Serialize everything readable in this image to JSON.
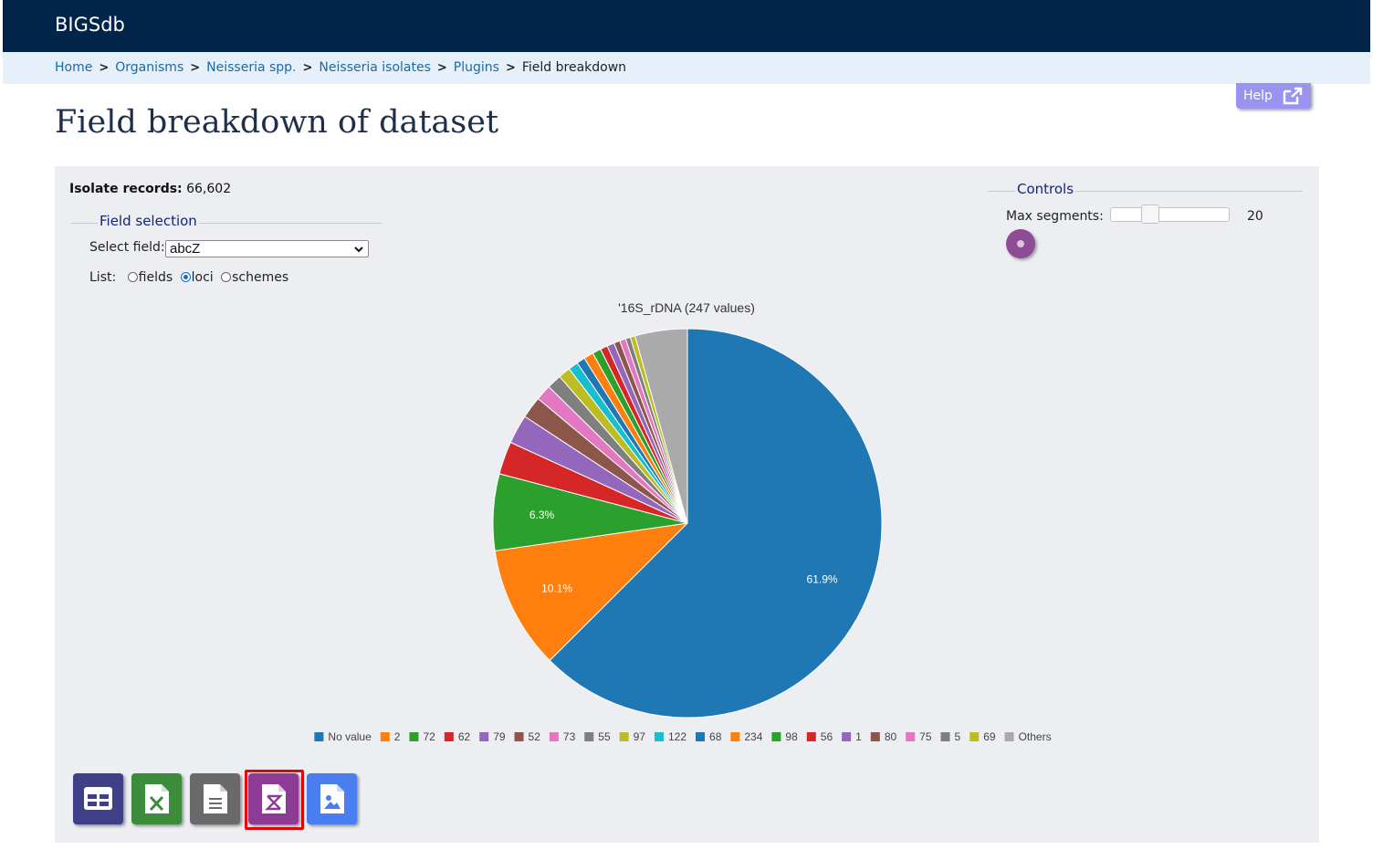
{
  "app": {
    "brand": "BIGSdb"
  },
  "breadcrumb": {
    "items": [
      "Home",
      "Organisms",
      "Neisseria spp.",
      "Neisseria isolates",
      "Plugins"
    ],
    "current": "Field breakdown",
    "separator": ">"
  },
  "help": {
    "label": "Help",
    "icon": "external-link-icon"
  },
  "page": {
    "title": "Field breakdown of dataset"
  },
  "records": {
    "label": "Isolate records:",
    "value": "66,602"
  },
  "field_selection": {
    "legend": "Field selection",
    "select_label": "Select field:",
    "selected": "abcZ",
    "list_label": "List:",
    "options": [
      {
        "label": "fields",
        "checked": false
      },
      {
        "label": "loci",
        "checked": true
      },
      {
        "label": "schemes",
        "checked": false
      }
    ]
  },
  "controls": {
    "legend": "Controls",
    "max_segments_label": "Max segments:",
    "max_segments_value": "20",
    "slider_fraction": 0.27
  },
  "chart_data": {
    "type": "pie",
    "title": "'16S_rDNA (247 values)",
    "legend_position": "bottom",
    "slices": [
      {
        "label": "No value",
        "value": 61.9,
        "color": "#1f77b4",
        "show_label": "61.9%"
      },
      {
        "label": "2",
        "value": 10.1,
        "color": "#ff7f0e",
        "show_label": "10.1%"
      },
      {
        "label": "72",
        "value": 6.3,
        "color": "#2ca02c",
        "show_label": "6.3%"
      },
      {
        "label": "62",
        "value": 2.7,
        "color": "#d62728"
      },
      {
        "label": "79",
        "value": 2.4,
        "color": "#9467bd"
      },
      {
        "label": "52",
        "value": 1.8,
        "color": "#8c564b"
      },
      {
        "label": "73",
        "value": 1.3,
        "color": "#e377c2"
      },
      {
        "label": "55",
        "value": 1.2,
        "color": "#7f7f7f"
      },
      {
        "label": "97",
        "value": 1.0,
        "color": "#bcbd22"
      },
      {
        "label": "122",
        "value": 0.8,
        "color": "#17becf"
      },
      {
        "label": "68",
        "value": 0.7,
        "color": "#1f77b4"
      },
      {
        "label": "234",
        "value": 0.8,
        "color": "#ff7f0e"
      },
      {
        "label": "98",
        "value": 0.7,
        "color": "#2ca02c"
      },
      {
        "label": "56",
        "value": 0.6,
        "color": "#d62728"
      },
      {
        "label": "1",
        "value": 0.6,
        "color": "#9467bd"
      },
      {
        "label": "80",
        "value": 0.5,
        "color": "#8c564b"
      },
      {
        "label": "75",
        "value": 0.5,
        "color": "#e377c2"
      },
      {
        "label": "5",
        "value": 0.4,
        "color": "#7f7f7f"
      },
      {
        "label": "69",
        "value": 0.4,
        "color": "#bcbd22"
      },
      {
        "label": "Others",
        "value": 4.3,
        "color": "#aaaaaa"
      }
    ]
  },
  "exports": [
    {
      "name": "table-export-button",
      "icon": "table-icon",
      "color": "#3f3f8a"
    },
    {
      "name": "excel-export-button",
      "icon": "excel-file-icon",
      "color": "#3b8d3b"
    },
    {
      "name": "text-export-button",
      "icon": "text-file-icon",
      "color": "#6a6a6a"
    },
    {
      "name": "fasta-export-button",
      "icon": "dna-file-icon",
      "color": "#8e3b96",
      "selected": true
    },
    {
      "name": "image-export-button",
      "icon": "image-file-icon",
      "color": "#4a7ef0"
    }
  ]
}
